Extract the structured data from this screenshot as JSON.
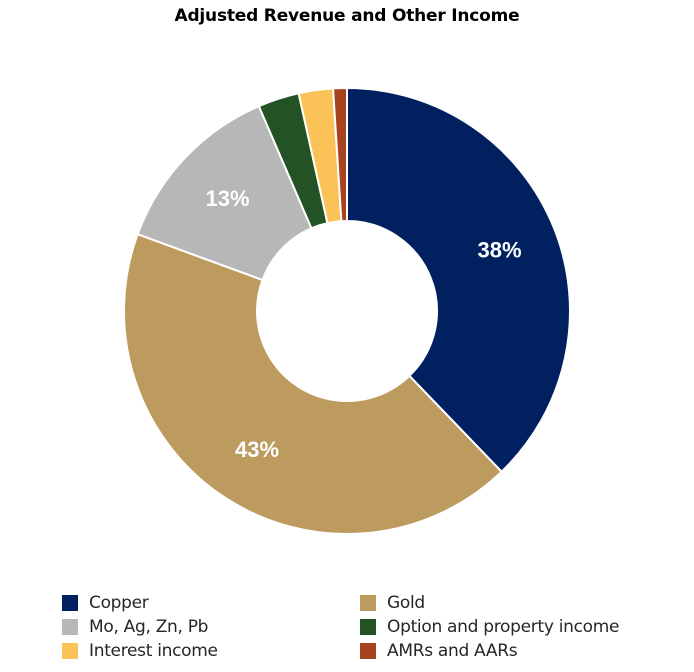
{
  "chart_data": {
    "type": "pie",
    "subtype": "donut",
    "title": "Adjusted Revenue and Other Income",
    "categories": [
      "Copper",
      "Gold",
      "Mo, Ag, Zn, Pb",
      "Option and property income",
      "Interest income",
      "AMRs and AARs"
    ],
    "values": [
      38,
      43,
      13,
      3,
      2.5,
      1
    ],
    "unit": "%",
    "data_labels": [
      "38%",
      "43%",
      "13%",
      "",
      "",
      ""
    ],
    "colors": [
      "#002060",
      "#BD9B5E",
      "#B7B7B7",
      "#235324",
      "#FAC257",
      "#A8431F"
    ],
    "start_angle_deg": 0,
    "direction": "clockwise",
    "legend_position": "bottom"
  },
  "legend": [
    {
      "label": "Copper",
      "color": "#002060"
    },
    {
      "label": "Gold",
      "color": "#BD9B5E"
    },
    {
      "label": "Mo, Ag, Zn, Pb",
      "color": "#B7B7B7"
    },
    {
      "label": "Option and property income",
      "color": "#235324"
    },
    {
      "label": "Interest income",
      "color": "#FAC257"
    },
    {
      "label": "AMRs and AARs",
      "color": "#A8431F"
    }
  ]
}
